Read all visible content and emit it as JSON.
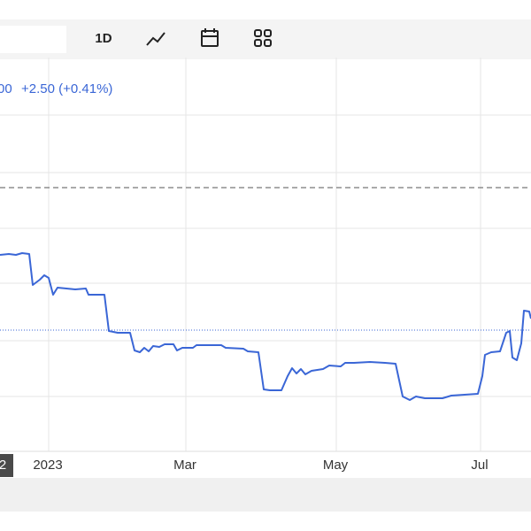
{
  "toolbar": {
    "interval": "1D"
  },
  "chart_data": {
    "type": "line",
    "annotations": [
      "00",
      "+2.50 (+0.41%)"
    ],
    "x": [
      0,
      10,
      18,
      25,
      33,
      37,
      45,
      50,
      55,
      60,
      65,
      75,
      85,
      97,
      100,
      118,
      123,
      133,
      147,
      152,
      158,
      163,
      168,
      173,
      180,
      186,
      196,
      200,
      206,
      218,
      222,
      250,
      255,
      275,
      280,
      292,
      298,
      305,
      318,
      325,
      330,
      335,
      340,
      345,
      352,
      365,
      372,
      385,
      390,
      400,
      418,
      435,
      447,
      455,
      463,
      470,
      480,
      500,
      510,
      525,
      540,
      545,
      548,
      555,
      565,
      572,
      576,
      579,
      584,
      589,
      592,
      598,
      600
    ],
    "series": [
      {
        "color": "#3a66d6",
        "values": [
          312,
          313,
          312,
          314,
          313,
          278,
          284,
          289,
          286,
          267,
          275,
          274,
          273,
          274,
          267,
          267,
          226,
          224,
          224,
          204,
          202,
          207,
          203,
          209,
          208,
          211,
          211,
          204,
          207,
          207,
          210,
          210,
          207,
          206,
          203,
          202,
          160,
          159,
          159,
          175,
          184,
          178,
          183,
          177,
          181,
          183,
          187,
          186,
          190,
          190,
          191,
          190,
          189,
          152,
          148,
          152,
          150,
          150,
          153,
          154,
          155,
          175,
          199,
          202,
          203,
          224,
          226,
          196,
          193,
          212,
          249,
          248,
          240
        ]
      }
    ],
    "xlim": [
      0,
      600
    ],
    "ylim": [
      90,
      535
    ],
    "xticks": [
      {
        "value": 5,
        "label": "2"
      },
      {
        "value": 55,
        "label": "2023"
      },
      {
        "value": 210,
        "label": "Mar"
      },
      {
        "value": 380,
        "label": "May"
      },
      {
        "value": 543,
        "label": "Jul"
      }
    ],
    "yticks": [
      152,
      215,
      280,
      342,
      405,
      470
    ],
    "hlines": [
      {
        "value": 388,
        "style": "dashed",
        "color": "#777777"
      },
      {
        "value": 227,
        "style": "dotted",
        "color": "#3a66d6"
      }
    ],
    "grid": true
  }
}
